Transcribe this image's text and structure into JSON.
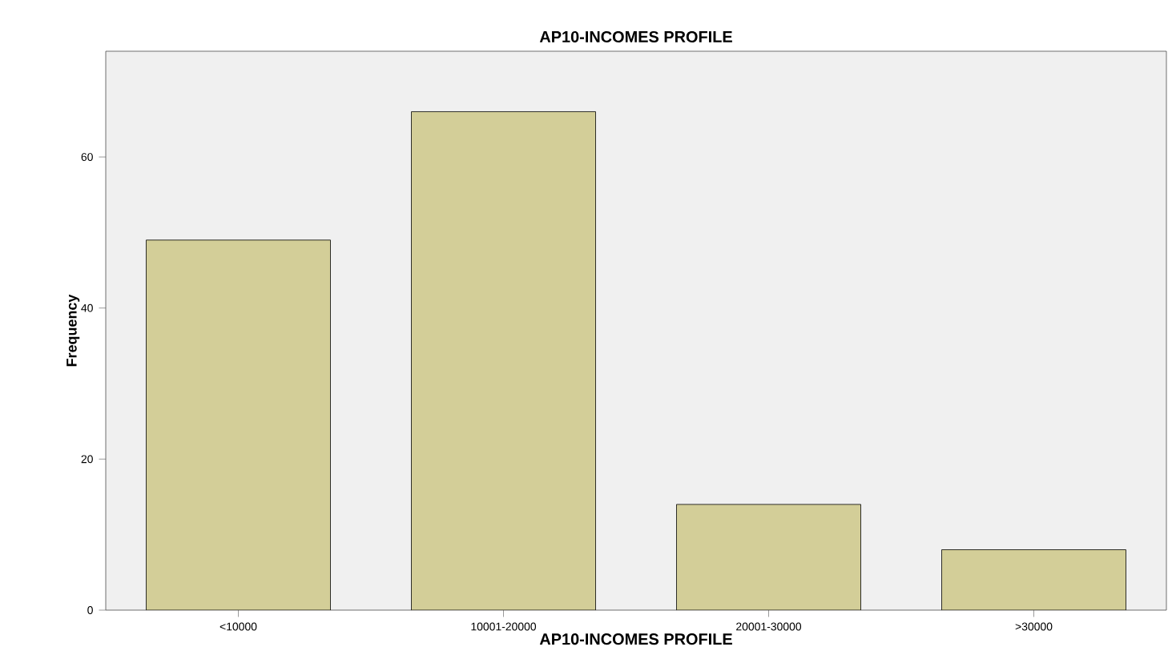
{
  "chart_data": {
    "type": "bar",
    "title": "AP10-INCOMES PROFILE",
    "xlabel": "AP10-INCOMES PROFILE",
    "ylabel": "Frequency",
    "categories": [
      "<10000",
      "10001-20000",
      "20001-30000",
      ">30000"
    ],
    "values": [
      49,
      66,
      14,
      8
    ],
    "color": "#d3ce98",
    "ylim": [
      0,
      74
    ],
    "yticks": [
      0,
      20,
      40,
      60
    ],
    "grid": false
  }
}
